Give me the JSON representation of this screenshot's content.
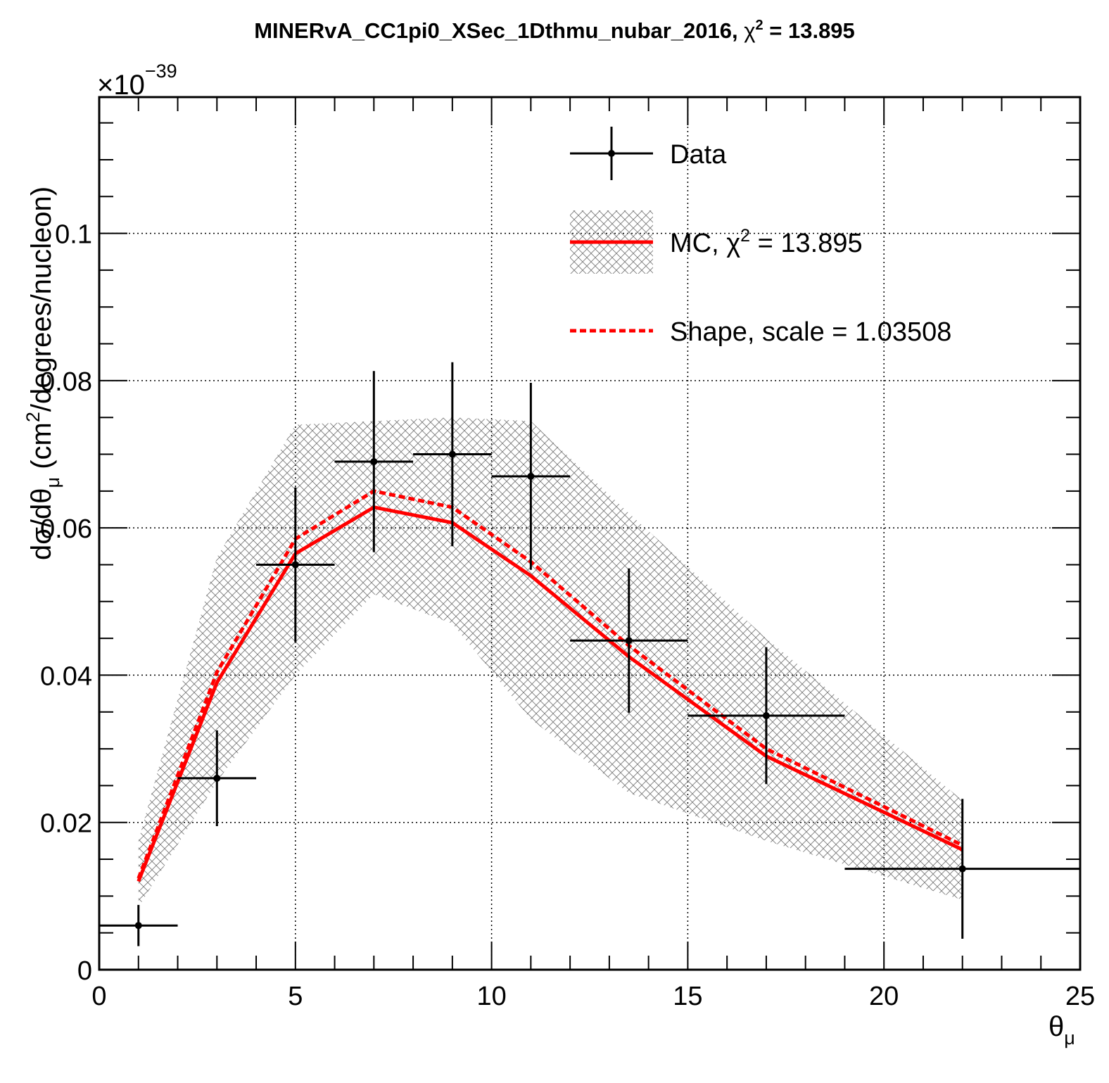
{
  "chart_data": {
    "type": "line",
    "title": "MINERvA_CC1pi0_XSec_1Dthmu_nubar_2016, χ² = 13.895",
    "title_main": "MINERvA_CC1pi0_XSec_1Dthmu_nubar_2016, ",
    "title_chi_symbol": "χ",
    "title_sup": "2",
    "title_value": " = 13.895",
    "xlabel": "θ",
    "xlabel_sub": "μ",
    "ylabel": "dσ/dθ",
    "ylabel_sub": "μ",
    "ylabel_rest": " (cm",
    "ylabel_sup": "2",
    "ylabel_end": "/degrees/nucleon)",
    "y_exponent_base": "×10",
    "y_exponent": "−39",
    "xlim": [
      0,
      25
    ],
    "ylim": [
      0,
      0.1185
    ],
    "xticks": [
      0,
      5,
      10,
      15,
      20,
      25
    ],
    "xtick_labels": [
      "0",
      "5",
      "10",
      "15",
      "20",
      "25"
    ],
    "yticks": [
      0,
      0.02,
      0.04,
      0.06,
      0.08,
      0.1
    ],
    "ytick_labels": [
      "0",
      "0.02",
      "0.04",
      "0.06",
      "0.08",
      "0.1"
    ],
    "grid": true,
    "legend_position": "top-right",
    "legend": [
      {
        "label": "Data"
      },
      {
        "label_main": "MC, ",
        "label_chi": "χ",
        "label_sup": "2",
        "label_rest": " = 13.895"
      },
      {
        "label": "Shape, scale = 1.03508"
      }
    ],
    "colors": {
      "data": "#000000",
      "mc": "#ff0000",
      "band": "#888888"
    },
    "data_series": {
      "name": "Data",
      "x": [
        1,
        3,
        5,
        7,
        9,
        11,
        13.5,
        17,
        22
      ],
      "xerr_low": [
        0,
        2,
        4,
        6,
        8,
        10,
        12,
        15,
        19
      ],
      "xerr_high": [
        2,
        4,
        6,
        8,
        10,
        12,
        15,
        19,
        25
      ],
      "y": [
        0.006,
        0.026,
        0.055,
        0.069,
        0.07,
        0.067,
        0.0447,
        0.0345,
        0.0137
      ],
      "yerr": [
        0.0028,
        0.0065,
        0.0105,
        0.0123,
        0.0125,
        0.0127,
        0.0098,
        0.0093,
        0.0095
      ]
    },
    "mc_series": {
      "name": "MC, χ² = 13.895",
      "x": [
        1,
        3,
        5,
        7,
        9,
        11,
        13.5,
        17,
        22
      ],
      "y": [
        0.012,
        0.039,
        0.0565,
        0.0628,
        0.0607,
        0.0535,
        0.0425,
        0.029,
        0.0163
      ]
    },
    "mc_band": {
      "x": [
        1,
        3,
        5,
        7,
        9,
        11,
        13.5,
        17,
        22
      ],
      "low": [
        0.0085,
        0.0255,
        0.04,
        0.051,
        0.047,
        0.034,
        0.024,
        0.0175,
        0.0095
      ],
      "high": [
        0.0175,
        0.056,
        0.074,
        0.0745,
        0.075,
        0.0745,
        0.062,
        0.045,
        0.023
      ]
    },
    "shape_series": {
      "name": "Shape, scale = 1.03508",
      "x": [
        1,
        3,
        5,
        7,
        9,
        11,
        13.5,
        17,
        22
      ],
      "y": [
        0.0124,
        0.0404,
        0.0585,
        0.065,
        0.0628,
        0.0554,
        0.044,
        0.03,
        0.0169
      ]
    }
  }
}
